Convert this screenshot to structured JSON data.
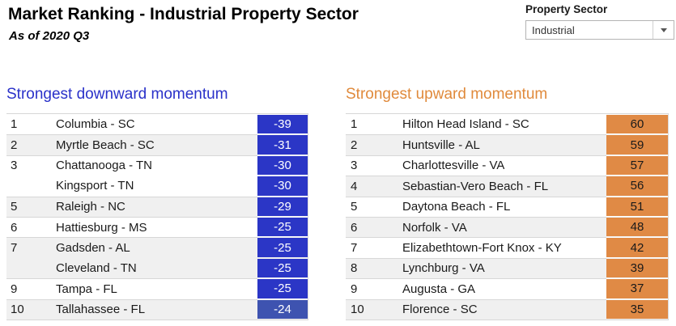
{
  "header": {
    "title": "Market Ranking - Industrial Property Sector",
    "subtitle": "As of 2020 Q3"
  },
  "filter": {
    "label": "Property Sector",
    "value": "Industrial"
  },
  "colors": {
    "downward_accent": "#2a31c9",
    "upward_accent": "#e08a3c",
    "row_band": "#f0f0f0",
    "divider": "#d7d7d7"
  },
  "tables": {
    "downward": {
      "title": "Strongest downward momentum",
      "value_bg": "#2b36c6",
      "value_text": "#ffffff",
      "rows": [
        {
          "rank": "1",
          "name": "Columbia - SC",
          "value": "-39"
        },
        {
          "rank": "2",
          "name": "Myrtle Beach - SC",
          "value": "-31"
        },
        {
          "rank": "3",
          "name": "Chattanooga - TN",
          "value": "-30"
        },
        {
          "rank": "",
          "name": "Kingsport - TN",
          "value": "-30"
        },
        {
          "rank": "5",
          "name": "Raleigh - NC",
          "value": "-29"
        },
        {
          "rank": "6",
          "name": "Hattiesburg - MS",
          "value": "-25"
        },
        {
          "rank": "7",
          "name": "Gadsden - AL",
          "value": "-25"
        },
        {
          "rank": "",
          "name": "Cleveland - TN",
          "value": "-25"
        },
        {
          "rank": "9",
          "name": "Tampa - FL",
          "value": "-25"
        },
        {
          "rank": "10",
          "name": "Tallahassee - FL",
          "value": "-24",
          "value_bg": "#3e53b0"
        }
      ]
    },
    "upward": {
      "title": "Strongest upward momentum",
      "value_bg": "#e08a45",
      "value_text": "#1a1a1a",
      "rows": [
        {
          "rank": "1",
          "name": "Hilton Head Island - SC",
          "value": "60"
        },
        {
          "rank": "2",
          "name": "Huntsville - AL",
          "value": "59"
        },
        {
          "rank": "3",
          "name": "Charlottesville - VA",
          "value": "57"
        },
        {
          "rank": "4",
          "name": "Sebastian-Vero Beach - FL",
          "value": "56"
        },
        {
          "rank": "5",
          "name": "Daytona Beach - FL",
          "value": "51"
        },
        {
          "rank": "6",
          "name": "Norfolk - VA",
          "value": "48"
        },
        {
          "rank": "7",
          "name": "Elizabethtown-Fort Knox - KY",
          "value": "42"
        },
        {
          "rank": "8",
          "name": "Lynchburg - VA",
          "value": "39"
        },
        {
          "rank": "9",
          "name": "Augusta - GA",
          "value": "37"
        },
        {
          "rank": "10",
          "name": "Florence - SC",
          "value": "35"
        }
      ]
    }
  }
}
